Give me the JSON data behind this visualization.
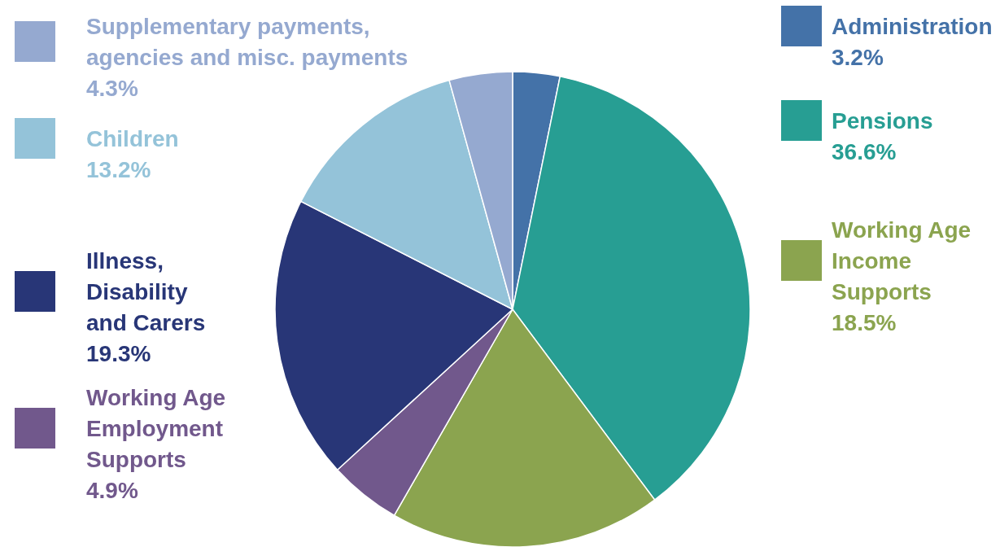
{
  "chart_data": {
    "type": "pie",
    "categories": [
      "Administration",
      "Pensions",
      "Working Age Income Supports",
      "Working Age Employment Supports",
      "Illness, Disability and Carers",
      "Children",
      "Supplementary payments, agencies and misc. payments"
    ],
    "values": [
      3.2,
      36.6,
      18.5,
      4.9,
      19.3,
      13.2,
      4.3
    ],
    "value_labels": [
      "3.2%",
      "36.6%",
      "18.5%",
      "4.9%",
      "19.3%",
      "13.2%",
      "4.3%"
    ],
    "colors": [
      "#4472a8",
      "#279e93",
      "#8ba44f",
      "#71588c",
      "#283677",
      "#94c3d9",
      "#95a9d0"
    ],
    "legend": "left right"
  }
}
